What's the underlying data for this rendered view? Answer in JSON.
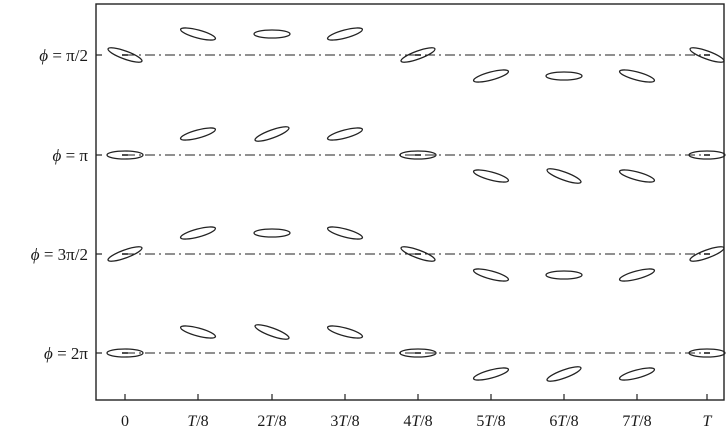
{
  "figure": {
    "rows": [
      {
        "label": "ϕ = π/2",
        "parts": [
          "ϕ",
          " = π/2"
        ]
      },
      {
        "label": "ϕ = π",
        "parts": [
          "ϕ",
          " = π"
        ]
      },
      {
        "label": "ϕ = 3π/2",
        "parts": [
          "ϕ",
          " = 3π/2"
        ]
      },
      {
        "label": "ϕ = 2π",
        "parts": [
          "ϕ",
          " = 2π"
        ]
      }
    ],
    "columns": [
      {
        "label": "0",
        "num": "0",
        "sym": "",
        "den": ""
      },
      {
        "label": "T/8",
        "num": "",
        "sym": "T",
        "den": "/8"
      },
      {
        "label": "2T/8",
        "num": "2",
        "sym": "T",
        "den": "/8"
      },
      {
        "label": "3T/8",
        "num": "3",
        "sym": "T",
        "den": "/8"
      },
      {
        "label": "4T/8",
        "num": "4",
        "sym": "T",
        "den": "/8"
      },
      {
        "label": "5T/8",
        "num": "5",
        "sym": "T",
        "den": "/8"
      },
      {
        "label": "6T/8",
        "num": "6",
        "sym": "T",
        "den": "/8"
      },
      {
        "label": "7T/8",
        "num": "7",
        "sym": "T",
        "den": "/8"
      },
      {
        "label": "T",
        "num": "",
        "sym": "T",
        "den": ""
      }
    ],
    "ellipses": [
      [
        {
          "offset": 0,
          "angle": 20
        },
        {
          "offset": 1,
          "angle": 15
        },
        {
          "offset": 1,
          "angle": 0
        },
        {
          "offset": 1,
          "angle": -15
        },
        {
          "offset": 0,
          "angle": -20
        },
        {
          "offset": -1,
          "angle": -15
        },
        {
          "offset": -1,
          "angle": 0
        },
        {
          "offset": -1,
          "angle": 15
        },
        {
          "offset": 0,
          "angle": 20
        }
      ],
      [
        {
          "offset": 0,
          "angle": 0
        },
        {
          "offset": 1,
          "angle": -15
        },
        {
          "offset": 1,
          "angle": -20
        },
        {
          "offset": 1,
          "angle": -15
        },
        {
          "offset": 0,
          "angle": 0
        },
        {
          "offset": -1,
          "angle": 15
        },
        {
          "offset": -1,
          "angle": 20
        },
        {
          "offset": -1,
          "angle": 15
        },
        {
          "offset": 0,
          "angle": 0
        }
      ],
      [
        {
          "offset": 0,
          "angle": -20
        },
        {
          "offset": 1,
          "angle": -15
        },
        {
          "offset": 1,
          "angle": 0
        },
        {
          "offset": 1,
          "angle": 15
        },
        {
          "offset": 0,
          "angle": 20
        },
        {
          "offset": -1,
          "angle": 15
        },
        {
          "offset": -1,
          "angle": 0
        },
        {
          "offset": -1,
          "angle": -15
        },
        {
          "offset": 0,
          "angle": -20
        }
      ],
      [
        {
          "offset": 0,
          "angle": 0
        },
        {
          "offset": 1,
          "angle": 15
        },
        {
          "offset": 1,
          "angle": 20
        },
        {
          "offset": 1,
          "angle": 15
        },
        {
          "offset": 0,
          "angle": 0
        },
        {
          "offset": -1,
          "angle": -15
        },
        {
          "offset": -1,
          "angle": -20
        },
        {
          "offset": -1,
          "angle": -15
        },
        {
          "offset": 0,
          "angle": 0
        }
      ]
    ],
    "center_dot_columns": [
      0,
      4,
      8
    ]
  }
}
